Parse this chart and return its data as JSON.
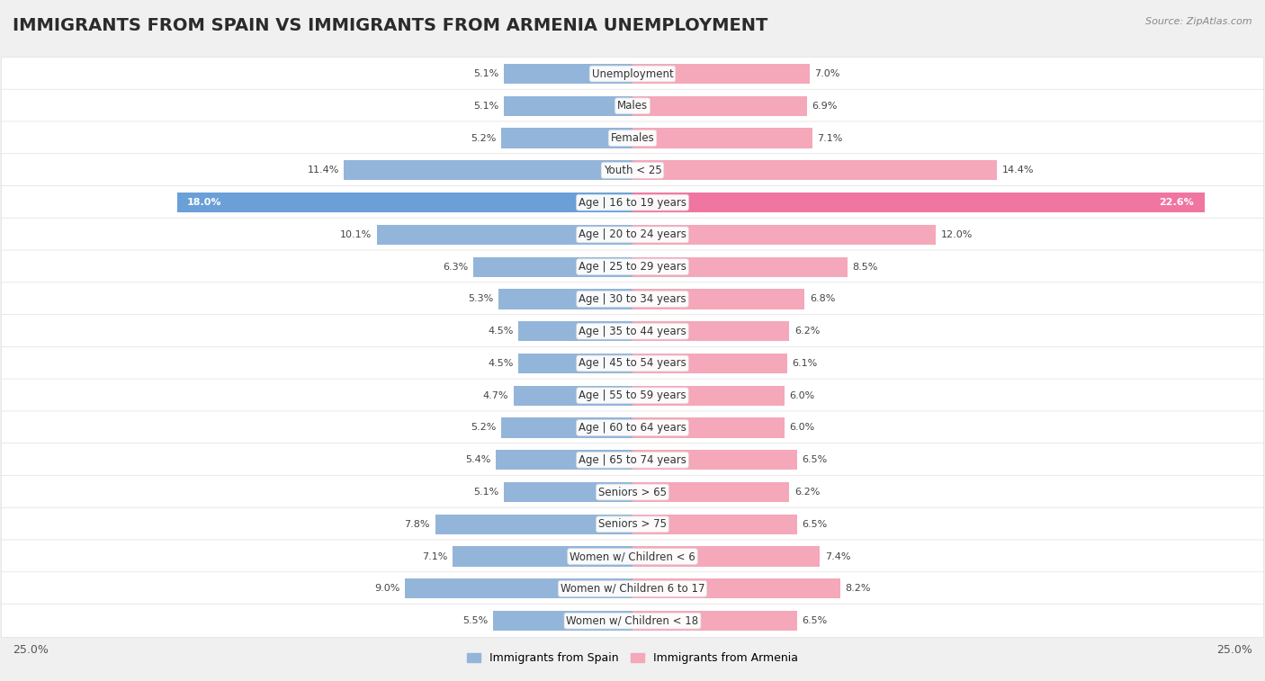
{
  "title": "IMMIGRANTS FROM SPAIN VS IMMIGRANTS FROM ARMENIA UNEMPLOYMENT",
  "source": "Source: ZipAtlas.com",
  "categories": [
    "Unemployment",
    "Males",
    "Females",
    "Youth < 25",
    "Age | 16 to 19 years",
    "Age | 20 to 24 years",
    "Age | 25 to 29 years",
    "Age | 30 to 34 years",
    "Age | 35 to 44 years",
    "Age | 45 to 54 years",
    "Age | 55 to 59 years",
    "Age | 60 to 64 years",
    "Age | 65 to 74 years",
    "Seniors > 65",
    "Seniors > 75",
    "Women w/ Children < 6",
    "Women w/ Children 6 to 17",
    "Women w/ Children < 18"
  ],
  "spain_values": [
    5.1,
    5.1,
    5.2,
    11.4,
    18.0,
    10.1,
    6.3,
    5.3,
    4.5,
    4.5,
    4.7,
    5.2,
    5.4,
    5.1,
    7.8,
    7.1,
    9.0,
    5.5
  ],
  "armenia_values": [
    7.0,
    6.9,
    7.1,
    14.4,
    22.6,
    12.0,
    8.5,
    6.8,
    6.2,
    6.1,
    6.0,
    6.0,
    6.5,
    6.2,
    6.5,
    7.4,
    8.2,
    6.5
  ],
  "spain_color": "#93b5d9",
  "armenia_color": "#f4a8ba",
  "spain_label": "Immigrants from Spain",
  "armenia_label": "Immigrants from Armenia",
  "xlim": 25.0,
  "background_color": "#f0f0f0",
  "row_white_color": "#ffffff",
  "row_gap_color": "#e0e0e0",
  "title_fontsize": 14,
  "label_fontsize": 8.5,
  "value_fontsize": 8.0,
  "highlight_spain_color": "#6a9fd8",
  "highlight_armenia_color": "#f075a0"
}
